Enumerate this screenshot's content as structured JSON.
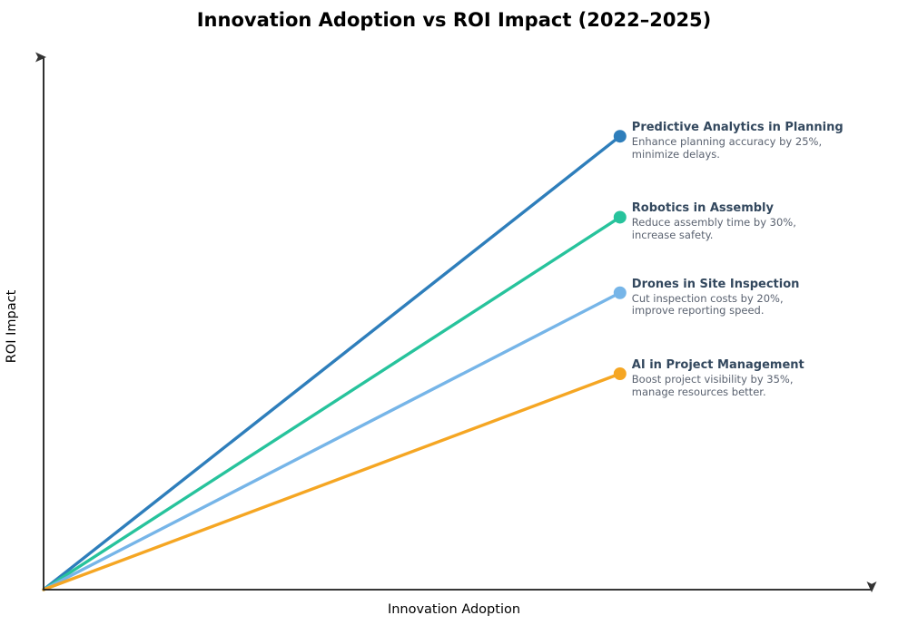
{
  "chart_data": {
    "type": "line",
    "title": "Innovation Adoption vs ROI Impact (2022–2025)",
    "xlabel": "Innovation Adoption",
    "ylabel": "ROI Impact",
    "x_range": [
      0,
      1
    ],
    "y_range": [
      0,
      1
    ],
    "grid": false,
    "ticks": false,
    "axis_arrows": true,
    "axis_color": "#1a1a1a",
    "legend_position": "none",
    "series": [
      {
        "name": "Predictive Analytics in Planning",
        "desc": "Enhance planning accuracy by 25%,\nminimize delays.",
        "color": "#2e7ebb",
        "points": [
          [
            0,
            0
          ],
          [
            0.69,
            0.84
          ]
        ]
      },
      {
        "name": "Robotics in Assembly",
        "desc": "Reduce assembly time by 30%,\nincrease safety.",
        "color": "#27c39c",
        "points": [
          [
            0,
            0
          ],
          [
            0.69,
            0.69
          ]
        ]
      },
      {
        "name": "Drones in Site Inspection",
        "desc": "Cut inspection costs by 20%,\nimprove reporting speed.",
        "color": "#76b5e8",
        "points": [
          [
            0,
            0
          ],
          [
            0.69,
            0.55
          ]
        ]
      },
      {
        "name": "AI in Project Management",
        "desc": "Boost project visibility by 35%,\nmanage resources better.",
        "color": "#f5a623",
        "points": [
          [
            0,
            0
          ],
          [
            0.69,
            0.4
          ]
        ]
      }
    ]
  }
}
